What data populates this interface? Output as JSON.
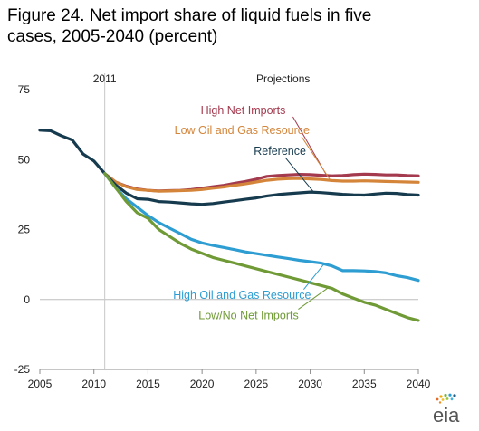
{
  "title_line1": "Figure 24. Net import share of liquid fuels in five",
  "title_line2": "cases, 2005-2040 (percent)",
  "logo_text": "eia",
  "chart_data": {
    "type": "line",
    "xlim": [
      2005,
      2040
    ],
    "ylim": [
      -25,
      75
    ],
    "xticks": [
      2005,
      2010,
      2015,
      2020,
      2025,
      2030,
      2035,
      2040
    ],
    "yticks": [
      75,
      50,
      25,
      0,
      -25
    ],
    "marker_year": 2011,
    "marker_label": "2011",
    "projections_label": "Projections",
    "grid": false,
    "series": [
      {
        "name": "High Net Imports",
        "color": "#a33a4e",
        "x": [
          2011,
          2012,
          2013,
          2014,
          2015,
          2016,
          2017,
          2018,
          2019,
          2020,
          2021,
          2022,
          2023,
          2024,
          2025,
          2026,
          2027,
          2028,
          2029,
          2030,
          2031,
          2032,
          2033,
          2034,
          2035,
          2036,
          2037,
          2038,
          2039,
          2040
        ],
        "y": [
          45,
          42,
          40.5,
          39.5,
          39,
          38.8,
          38.9,
          39,
          39.3,
          39.8,
          40.3,
          40.8,
          41.5,
          42.2,
          43,
          44,
          44.3,
          44.5,
          44.7,
          44.6,
          44.4,
          44.2,
          44.3,
          44.6,
          44.8,
          44.7,
          44.5,
          44.5,
          44.3,
          44.2
        ]
      },
      {
        "name": "Low Oil and Gas Resource",
        "color": "#d4853a",
        "x": [
          2011,
          2012,
          2013,
          2014,
          2015,
          2016,
          2017,
          2018,
          2019,
          2020,
          2021,
          2022,
          2023,
          2024,
          2025,
          2026,
          2027,
          2028,
          2029,
          2030,
          2031,
          2032,
          2033,
          2034,
          2035,
          2036,
          2037,
          2038,
          2039,
          2040
        ],
        "y": [
          45,
          42,
          40.3,
          39.3,
          39,
          38.7,
          38.8,
          38.9,
          39,
          39.3,
          39.8,
          40.2,
          40.8,
          41.3,
          42,
          42.6,
          43,
          43.2,
          43.3,
          43.1,
          42.9,
          42.5,
          42.3,
          42.3,
          42.4,
          42.3,
          42.2,
          42.1,
          42,
          41.9
        ]
      },
      {
        "name": "Reference",
        "color": "#173b4e",
        "x": [
          2005,
          2006,
          2007,
          2008,
          2009,
          2010,
          2011,
          2012,
          2013,
          2014,
          2015,
          2016,
          2017,
          2018,
          2019,
          2020,
          2021,
          2022,
          2023,
          2024,
          2025,
          2026,
          2027,
          2028,
          2029,
          2030,
          2031,
          2032,
          2033,
          2034,
          2035,
          2036,
          2037,
          2038,
          2039,
          2040
        ],
        "y": [
          60.5,
          60.3,
          58.5,
          57,
          52,
          49.5,
          45,
          41,
          38,
          36,
          35.8,
          35,
          34.8,
          34.5,
          34.2,
          34,
          34.3,
          34.8,
          35.3,
          35.8,
          36.3,
          37,
          37.5,
          37.8,
          38.1,
          38.4,
          38.2,
          37.9,
          37.6,
          37.4,
          37.3,
          37.7,
          38,
          37.9,
          37.5,
          37.3
        ]
      },
      {
        "name": "High Oil and Gas Resource",
        "color": "#2e9dd2",
        "x": [
          2011,
          2012,
          2013,
          2014,
          2015,
          2016,
          2017,
          2018,
          2019,
          2020,
          2021,
          2022,
          2023,
          2024,
          2025,
          2026,
          2027,
          2028,
          2029,
          2030,
          2031,
          2032,
          2033,
          2034,
          2035,
          2036,
          2037,
          2038,
          2039,
          2040
        ],
        "y": [
          45,
          40,
          36,
          33,
          30,
          27.5,
          25.5,
          23.5,
          21.5,
          20.2,
          19.3,
          18.6,
          17.8,
          17,
          16.4,
          15.8,
          15.2,
          14.6,
          14,
          13.5,
          13,
          12,
          10.3,
          10.3,
          10.2,
          10,
          9.5,
          8.5,
          7.8,
          6.8
        ]
      },
      {
        "name": "Low/No Net Imports",
        "color": "#6f9a35",
        "x": [
          2011,
          2012,
          2013,
          2014,
          2015,
          2016,
          2017,
          2018,
          2019,
          2020,
          2021,
          2022,
          2023,
          2024,
          2025,
          2026,
          2027,
          2028,
          2029,
          2030,
          2031,
          2032,
          2033,
          2034,
          2035,
          2036,
          2037,
          2038,
          2039,
          2040
        ],
        "y": [
          45,
          40,
          35,
          31,
          29,
          25,
          22.5,
          20,
          18,
          16.5,
          15,
          14,
          13,
          12,
          11,
          10,
          9,
          8,
          7,
          6,
          5,
          4,
          2,
          0.5,
          -1,
          -2,
          -3.5,
          -5,
          -6.5,
          -7.5
        ]
      }
    ],
    "labels": [
      {
        "text": "High Net Imports",
        "color": "#a33a4e",
        "tx": 2023.8,
        "ty": 67.5,
        "anchor": "middle",
        "lx0": 2028.4,
        "ly0": 65.3,
        "lx1": 2031.5,
        "ly1": 44.5
      },
      {
        "text": "Low Oil and Gas Resource",
        "color": "#d4853a",
        "tx": 2023.7,
        "ty": 60.5,
        "anchor": "middle",
        "lx0": 2029.2,
        "ly0": 58.2,
        "lx1": 2031.8,
        "ly1": 43
      },
      {
        "text": "Reference",
        "color": "#173b4e",
        "tx": 2027.2,
        "ty": 53,
        "anchor": "middle",
        "lx0": 2027.7,
        "ly0": 50.7,
        "lx1": 2030.3,
        "ly1": 38.5
      },
      {
        "text": "High Oil and Gas Resource",
        "color": "#2e9dd2",
        "tx": 2023.7,
        "ty": 1.5,
        "anchor": "middle",
        "lx0": 2029.4,
        "ly0": 3.6,
        "lx1": 2031.3,
        "ly1": 12.8
      },
      {
        "text": "Low/No Net Imports",
        "color": "#6f9a35",
        "tx": 2024.3,
        "ty": -5.8,
        "anchor": "middle",
        "lx0": 2028.9,
        "ly0": -3.5,
        "lx1": 2031.7,
        "ly1": 4.3
      }
    ]
  }
}
